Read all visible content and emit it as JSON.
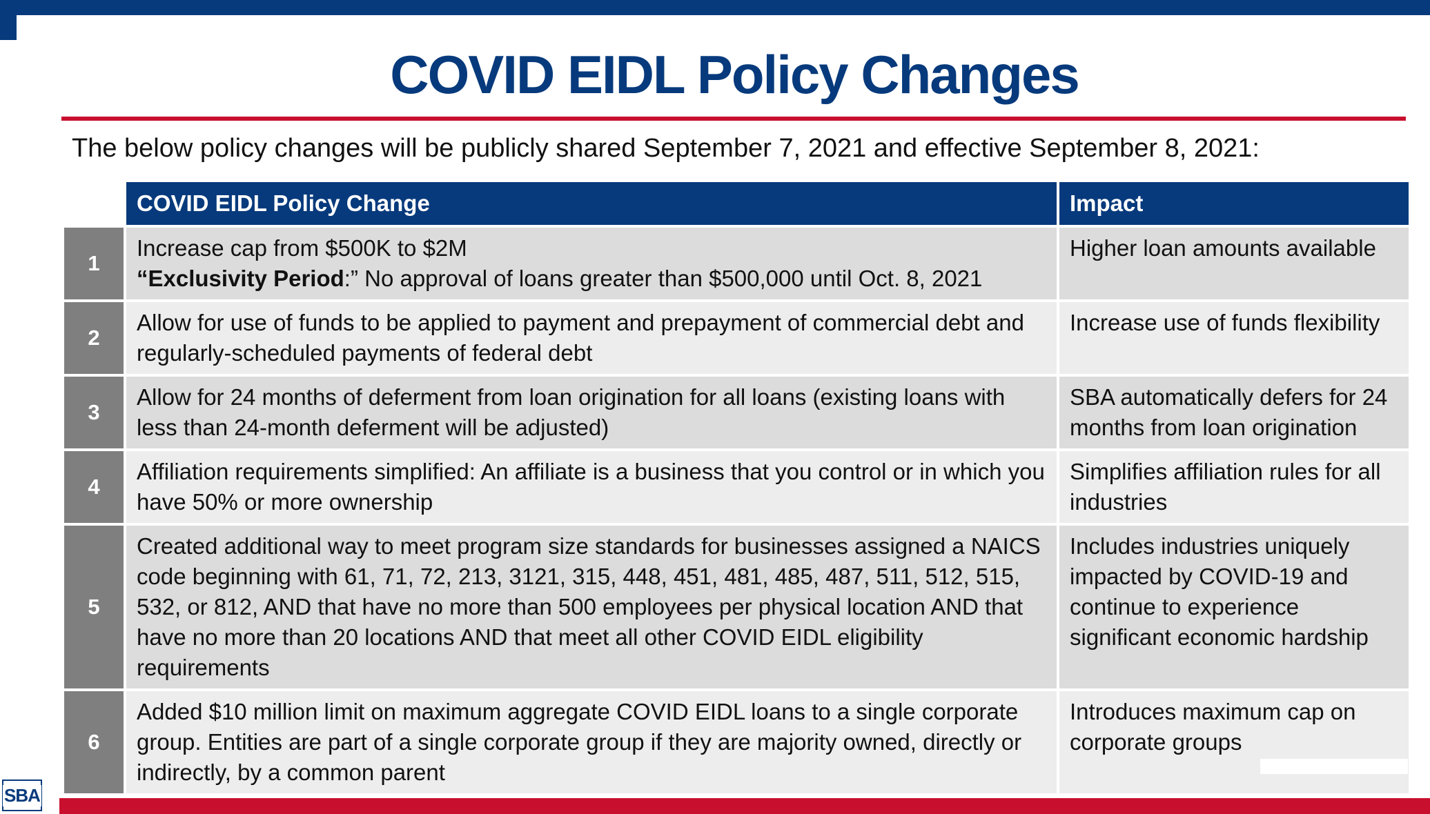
{
  "title": "COVID EIDL Policy Changes",
  "intro": "The below policy changes will be publicly shared September 7, 2021 and effective September 8, 2021:",
  "table": {
    "headers": {
      "change": "COVID EIDL Policy Change",
      "impact": "Impact"
    },
    "rows": [
      {
        "num": "1",
        "change": "Increase cap from $500K to $2M",
        "change_quote_open": "“",
        "change_bold": "Exclusivity Period",
        "change_after": ":” No approval of loans greater than $500,000 until Oct. 8, 2021",
        "impact": "Higher loan amounts available"
      },
      {
        "num": "2",
        "change": "Allow for use of funds to be applied to payment and prepayment of commercial debt and regularly-scheduled payments of federal debt",
        "impact": "Increase use of funds flexibility"
      },
      {
        "num": "3",
        "change": "Allow for 24 months of deferment from loan origination for all loans (existing loans with less than 24-month deferment will be adjusted)",
        "impact": "SBA automatically defers for 24 months from loan origination"
      },
      {
        "num": "4",
        "change": "Affiliation requirements simplified: An affiliate is a business that you control or in which you have 50% or more ownership",
        "impact": "Simplifies affiliation rules for all industries"
      },
      {
        "num": "5",
        "change": "Created additional way to meet program size standards for businesses assigned a NAICS code beginning with 61, 71, 72, 213, 3121, 315, 448, 451, 481, 485, 487, 511, 512, 515, 532, or 812, AND that have no more than 500 employees per physical location AND that have no more than 20 locations AND that meet all other COVID EIDL eligibility requirements",
        "impact": "Includes industries uniquely impacted by COVID-19 and continue to experience significant economic hardship"
      },
      {
        "num": "6",
        "change": "Added $10 million limit on maximum aggregate COVID EIDL loans to a single corporate group. Entities are part of a single corporate group if they are majority owned, directly or indirectly, by a common parent",
        "impact": "Introduces maximum cap on corporate groups"
      }
    ]
  },
  "logo_text": "SBA",
  "colors": {
    "navy": "#073a7c",
    "red": "#c8102e",
    "gray_num": "#7f7f7f",
    "row_dark": "#dcdcdc",
    "row_light": "#ededed"
  }
}
